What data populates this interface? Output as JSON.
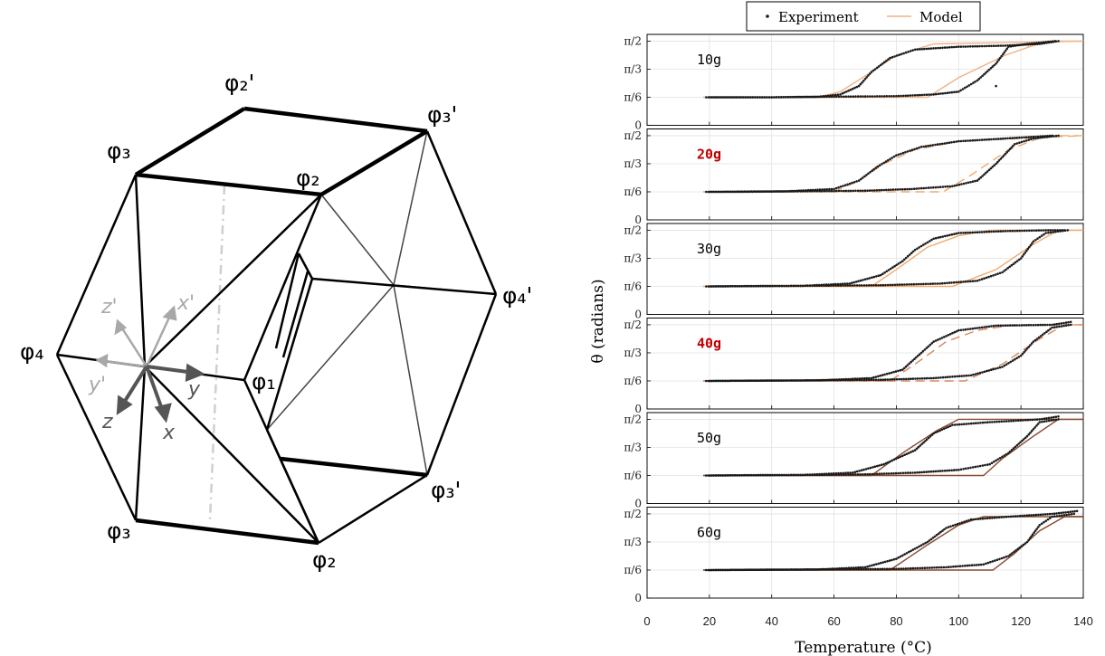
{
  "diagram": {
    "vertex_labels": {
      "phi2_top": "φ₂'",
      "phi3_top_right": "φ₃'",
      "phi3_left": "φ₃",
      "phi2_mid": "φ₂",
      "phi4_right": "φ₄'",
      "phi4_left": "φ₄",
      "phi1": "φ₁",
      "phi3_bot_right": "φ₃'",
      "phi3_bot_left": "φ₃",
      "phi2_bottom": "φ₂"
    },
    "axis_labels": {
      "z_prime": "z'",
      "x_prime": "x'",
      "y_prime": "y'",
      "y": "y",
      "z": "z",
      "x": "x"
    }
  },
  "chart_data": {
    "type": "scatter",
    "title": "",
    "xlabel": "Temperature (°C)",
    "ylabel": "θ (radians)",
    "xlim": [
      0,
      140
    ],
    "ylim": [
      0,
      1.5708
    ],
    "x_ticks": [
      "0",
      "20",
      "40",
      "60",
      "80",
      "100",
      "120",
      "140"
    ],
    "y_ticks": [
      "0",
      "π/6",
      "π/3",
      "π/2"
    ],
    "grid": true,
    "legend": {
      "position": "top",
      "entries": [
        "Experiment",
        "Model"
      ]
    },
    "series_styles": {
      "Experiment": {
        "marker": "dot",
        "color": "#1a1a1a"
      },
      "Model": {
        "line": "solid",
        "color": "#f2b183"
      }
    },
    "panels": [
      {
        "label": "10g",
        "label_color": "#000000",
        "model_color": "#f2b183",
        "model_dash": false,
        "model_heating": [
          [
            18,
            0.5236
          ],
          [
            55,
            0.5236
          ],
          [
            62,
            0.6283
          ],
          [
            72,
            0.9948
          ],
          [
            80,
            1.309
          ],
          [
            92,
            1.5184
          ],
          [
            140,
            1.5708
          ]
        ],
        "model_cooling": [
          [
            140,
            1.5708
          ],
          [
            128,
            1.5708
          ],
          [
            115,
            1.309
          ],
          [
            100,
            0.8901
          ],
          [
            90,
            0.5236
          ],
          [
            18,
            0.5236
          ]
        ],
        "exp_heating": [
          [
            19,
            0.5236
          ],
          [
            40,
            0.5236
          ],
          [
            55,
            0.5341
          ],
          [
            62,
            0.576
          ],
          [
            68,
            0.733
          ],
          [
            72,
            0.9948
          ],
          [
            78,
            1.2566
          ],
          [
            86,
            1.4137
          ],
          [
            100,
            1.4661
          ],
          [
            115,
            1.487
          ],
          [
            126,
            1.5184
          ],
          [
            132,
            1.5708
          ]
        ],
        "exp_cooling": [
          [
            131,
            1.5708
          ],
          [
            122,
            1.5184
          ],
          [
            116,
            1.4661
          ],
          [
            112,
            1.1519
          ],
          [
            106,
            0.8377
          ],
          [
            100,
            0.6283
          ],
          [
            92,
            0.5759
          ],
          [
            80,
            0.5445
          ],
          [
            60,
            0.5341
          ],
          [
            40,
            0.5236
          ],
          [
            20,
            0.5236
          ]
        ],
        "exp_stray": [
          [
            112,
            0.733
          ]
        ]
      },
      {
        "label": "20g",
        "label_color": "#c00000",
        "model_color": "#f2a96a",
        "model_dash": true,
        "model_heating": [
          [
            18,
            0.5236
          ],
          [
            60,
            0.5236
          ],
          [
            68,
            0.733
          ],
          [
            76,
            1.0472
          ],
          [
            86,
            1.309
          ],
          [
            100,
            1.4661
          ],
          [
            140,
            1.5708
          ]
        ],
        "model_cooling": [
          [
            140,
            1.5708
          ],
          [
            128,
            1.5708
          ],
          [
            116,
            1.309
          ],
          [
            104,
            0.8377
          ],
          [
            95,
            0.5236
          ],
          [
            18,
            0.5236
          ]
        ],
        "exp_heating": [
          [
            19,
            0.5236
          ],
          [
            45,
            0.5341
          ],
          [
            60,
            0.5759
          ],
          [
            68,
            0.733
          ],
          [
            74,
            0.9948
          ],
          [
            80,
            1.2043
          ],
          [
            88,
            1.3614
          ],
          [
            100,
            1.4661
          ],
          [
            115,
            1.5184
          ],
          [
            130,
            1.5708
          ]
        ],
        "exp_cooling": [
          [
            132,
            1.5708
          ],
          [
            124,
            1.5184
          ],
          [
            118,
            1.4137
          ],
          [
            112,
            1.0472
          ],
          [
            106,
            0.733
          ],
          [
            98,
            0.6283
          ],
          [
            85,
            0.576
          ],
          [
            70,
            0.5445
          ],
          [
            50,
            0.5341
          ],
          [
            30,
            0.5236
          ],
          [
            20,
            0.5236
          ]
        ],
        "exp_stray": []
      },
      {
        "label": "30g",
        "label_color": "#000000",
        "model_color": "#f2a96a",
        "model_dash": false,
        "model_heating": [
          [
            18,
            0.5236
          ],
          [
            72,
            0.5236
          ],
          [
            80,
            0.8377
          ],
          [
            90,
            1.2566
          ],
          [
            100,
            1.4661
          ],
          [
            110,
            1.5708
          ],
          [
            140,
            1.5708
          ]
        ],
        "model_cooling": [
          [
            140,
            1.5708
          ],
          [
            132,
            1.5708
          ],
          [
            124,
            1.309
          ],
          [
            112,
            0.8377
          ],
          [
            98,
            0.5236
          ],
          [
            18,
            0.5236
          ]
        ],
        "exp_heating": [
          [
            19,
            0.5236
          ],
          [
            50,
            0.5341
          ],
          [
            65,
            0.5759
          ],
          [
            75,
            0.733
          ],
          [
            82,
            0.9948
          ],
          [
            86,
            1.2043
          ],
          [
            92,
            1.4137
          ],
          [
            100,
            1.5184
          ],
          [
            115,
            1.555
          ],
          [
            128,
            1.5708
          ],
          [
            134,
            1.5708
          ]
        ],
        "exp_cooling": [
          [
            135,
            1.5708
          ],
          [
            128,
            1.5184
          ],
          [
            124,
            1.3614
          ],
          [
            120,
            1.0472
          ],
          [
            114,
            0.7853
          ],
          [
            106,
            0.6283
          ],
          [
            94,
            0.576
          ],
          [
            75,
            0.5445
          ],
          [
            50,
            0.5341
          ],
          [
            20,
            0.5236
          ]
        ],
        "exp_stray": []
      },
      {
        "label": "40g",
        "label_color": "#c00000",
        "model_color": "#d9875e",
        "model_dash": true,
        "model_heating": [
          [
            18,
            0.5236
          ],
          [
            78,
            0.5236
          ],
          [
            86,
            0.8377
          ],
          [
            96,
            1.2566
          ],
          [
            106,
            1.4661
          ],
          [
            118,
            1.5708
          ],
          [
            140,
            1.5708
          ]
        ],
        "model_cooling": [
          [
            140,
            1.5708
          ],
          [
            134,
            1.5708
          ],
          [
            126,
            1.309
          ],
          [
            114,
            0.8377
          ],
          [
            102,
            0.5236
          ],
          [
            18,
            0.5236
          ]
        ],
        "exp_heating": [
          [
            19,
            0.5236
          ],
          [
            55,
            0.5341
          ],
          [
            72,
            0.5759
          ],
          [
            82,
            0.733
          ],
          [
            88,
            1.0472
          ],
          [
            92,
            1.2566
          ],
          [
            100,
            1.4661
          ],
          [
            112,
            1.555
          ],
          [
            130,
            1.5708
          ],
          [
            136,
            1.6232
          ]
        ],
        "exp_cooling": [
          [
            136,
            1.5708
          ],
          [
            130,
            1.5184
          ],
          [
            124,
            1.2566
          ],
          [
            120,
            0.9948
          ],
          [
            114,
            0.7853
          ],
          [
            104,
            0.6283
          ],
          [
            92,
            0.576
          ],
          [
            75,
            0.5445
          ],
          [
            50,
            0.5341
          ],
          [
            20,
            0.5236
          ]
        ],
        "exp_stray": []
      },
      {
        "label": "50g",
        "label_color": "#000000",
        "model_color": "#8b4a2e",
        "model_dash": false,
        "model_heating": [
          [
            18,
            0.5236
          ],
          [
            72,
            0.5236
          ],
          [
            82,
            0.9424
          ],
          [
            93,
            1.3614
          ],
          [
            100,
            1.5708
          ],
          [
            140,
            1.5708
          ]
        ],
        "model_cooling": [
          [
            140,
            1.5708
          ],
          [
            132,
            1.5708
          ],
          [
            124,
            1.2566
          ],
          [
            114,
            0.8377
          ],
          [
            108,
            0.5236
          ],
          [
            18,
            0.5236
          ]
        ],
        "exp_heating": [
          [
            19,
            0.5236
          ],
          [
            50,
            0.5341
          ],
          [
            66,
            0.576
          ],
          [
            76,
            0.733
          ],
          [
            86,
            0.9948
          ],
          [
            92,
            1.309
          ],
          [
            98,
            1.4661
          ],
          [
            110,
            1.5184
          ],
          [
            126,
            1.5708
          ],
          [
            132,
            1.6232
          ]
        ],
        "exp_cooling": [
          [
            132,
            1.5708
          ],
          [
            126,
            1.5184
          ],
          [
            122,
            1.2566
          ],
          [
            116,
            0.9424
          ],
          [
            110,
            0.733
          ],
          [
            100,
            0.6283
          ],
          [
            86,
            0.576
          ],
          [
            70,
            0.5445
          ],
          [
            50,
            0.5341
          ],
          [
            20,
            0.5236
          ]
        ],
        "exp_stray": []
      },
      {
        "label": "60g",
        "label_color": "#000000",
        "model_color": "#8b4a2e",
        "model_dash": false,
        "model_heating": [
          [
            18,
            0.5236
          ],
          [
            78,
            0.5236
          ],
          [
            90,
            0.9948
          ],
          [
            100,
            1.3614
          ],
          [
            108,
            1.5184
          ],
          [
            140,
            1.5184
          ]
        ],
        "model_cooling": [
          [
            140,
            1.5184
          ],
          [
            134,
            1.5184
          ],
          [
            126,
            1.2566
          ],
          [
            118,
            0.8377
          ],
          [
            111,
            0.5236
          ],
          [
            18,
            0.5236
          ]
        ],
        "exp_heating": [
          [
            19,
            0.5236
          ],
          [
            55,
            0.5341
          ],
          [
            70,
            0.576
          ],
          [
            80,
            0.733
          ],
          [
            90,
            1.0472
          ],
          [
            96,
            1.309
          ],
          [
            104,
            1.4661
          ],
          [
            116,
            1.5184
          ],
          [
            130,
            1.5708
          ],
          [
            138,
            1.6232
          ]
        ],
        "exp_cooling": [
          [
            137,
            1.5708
          ],
          [
            130,
            1.5184
          ],
          [
            126,
            1.3614
          ],
          [
            122,
            1.0472
          ],
          [
            116,
            0.7853
          ],
          [
            108,
            0.6283
          ],
          [
            96,
            0.576
          ],
          [
            80,
            0.5445
          ],
          [
            50,
            0.5341
          ],
          [
            20,
            0.5236
          ]
        ],
        "exp_stray": []
      }
    ]
  }
}
